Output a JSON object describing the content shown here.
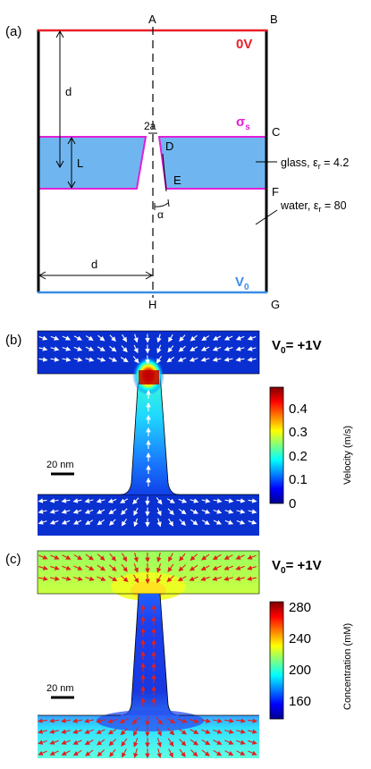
{
  "panel_a": {
    "label": "(a)",
    "points": {
      "A": "A",
      "B": "B",
      "C": "C",
      "D": "D",
      "E": "E",
      "F": "F",
      "G": "G",
      "H": "H"
    },
    "top_voltage": "0V",
    "bottom_voltage": "V",
    "bottom_voltage_sub": "0",
    "sigma": "σ",
    "sigma_sub": "s",
    "dim_d_vertical": "d",
    "dim_d_horizontal": "d",
    "dim_L": "L",
    "dim_2a": "2a",
    "dim_alpha": "α",
    "glass_label_main": "glass, ε",
    "glass_label_sub": "r",
    "glass_label_value": " = 4.2",
    "water_label_main": "water, ε",
    "water_label_sub": "r",
    "water_label_value": " = 80",
    "colors": {
      "top_line": "#e8202a",
      "bottom_line": "#3a8ee6",
      "glass_fill": "#6fb6f0",
      "surface_charge": "#e020d8"
    }
  },
  "panel_b": {
    "label": "(b)",
    "title_main": "V",
    "title_sub": "0",
    "title_value": "= +1V",
    "scalebar_label": "20 nm",
    "colorbar_title": "Velocity (m/s)",
    "colorbar_ticks": [
      "0.4",
      "0.3",
      "0.2",
      "0.1",
      "0"
    ],
    "arrow_color": "#ffffff"
  },
  "panel_c": {
    "label": "(c)",
    "title_main": "V",
    "title_sub": "0",
    "title_value": "= +1V",
    "scalebar_label": "20 nm",
    "colorbar_title": "Concentration (mM)",
    "colorbar_ticks": [
      "280",
      "240",
      "200",
      "160"
    ],
    "arrow_color": "#e02020"
  }
}
